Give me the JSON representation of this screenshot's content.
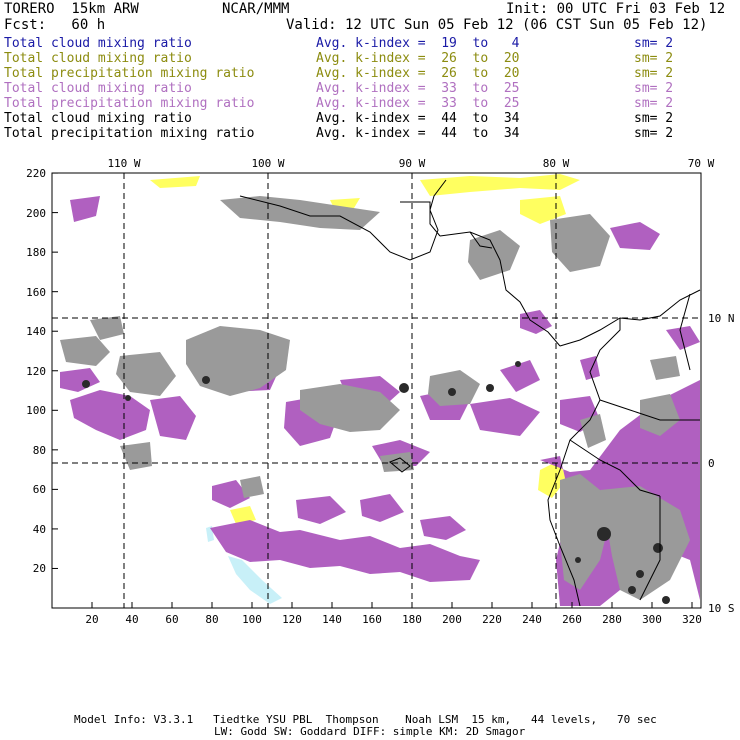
{
  "header": {
    "model": "TORERO  15km ARW",
    "org": "NCAR/MMM",
    "init": "Init: 00 UTC Fri 03 Feb 12",
    "fcst": "Fcst:   60 h",
    "valid": "Valid: 12 UTC Sun 05 Feb 12 (06 CST Sun 05 Feb 12)"
  },
  "legend": [
    {
      "field": "Total cloud mixing ratio",
      "index": "Avg. k-index =  19  to   4",
      "sm": "sm= 2",
      "color": "#1a1aa6"
    },
    {
      "field": "Total cloud mixing ratio",
      "index": "Avg. k-index =  26  to  20",
      "sm": "sm= 2",
      "color": "#8c8c10"
    },
    {
      "field": "Total precipitation mixing ratio",
      "index": "Avg. k-index =  26  to  20",
      "sm": "sm= 2",
      "color": "#8c8c10"
    },
    {
      "field": "Total cloud mixing ratio",
      "index": "Avg. k-index =  33  to  25",
      "sm": "sm= 2",
      "color": "#b070c0"
    },
    {
      "field": "Total precipitation mixing ratio",
      "index": "Avg. k-index =  33  to  25",
      "sm": "sm= 2",
      "color": "#b070c0"
    },
    {
      "field": "Total cloud mixing ratio",
      "index": "Avg. k-index =  44  to  34",
      "sm": "sm= 2",
      "color": "#000000"
    },
    {
      "field": "Total precipitation mixing ratio",
      "index": "Avg. k-index =  44  to  34",
      "sm": "sm= 2",
      "color": "#000000"
    }
  ],
  "axes": {
    "top_labels": [
      "110 W",
      "100 W",
      "90 W",
      "80 W",
      "70 W"
    ],
    "right_labels": [
      "10 N",
      "0",
      "10 S"
    ],
    "x_ticks": [
      "20",
      "40",
      "60",
      "80",
      "100",
      "120",
      "140",
      "160",
      "180",
      "200",
      "220",
      "240",
      "260",
      "280",
      "300",
      "320"
    ],
    "y_ticks": [
      "20",
      "40",
      "60",
      "80",
      "100",
      "120",
      "140",
      "160",
      "180",
      "200",
      "220"
    ]
  },
  "colors": {
    "cloud_gray": "#9a9a9a",
    "cloud_dark": "#2a2a2a",
    "precip_purple": "#b060c0",
    "cloud_yellow": "#ffff60",
    "shallow_cyan": "#c8f0f8"
  },
  "footer": {
    "line1": "Model Info: V3.3.1   Tiedtke YSU PBL  Thompson    Noah LSM  15 km,   44 levels,   70 sec",
    "line2": "LW: Godd SW: Goddard DIFF: simple KM: 2D Smagor"
  }
}
